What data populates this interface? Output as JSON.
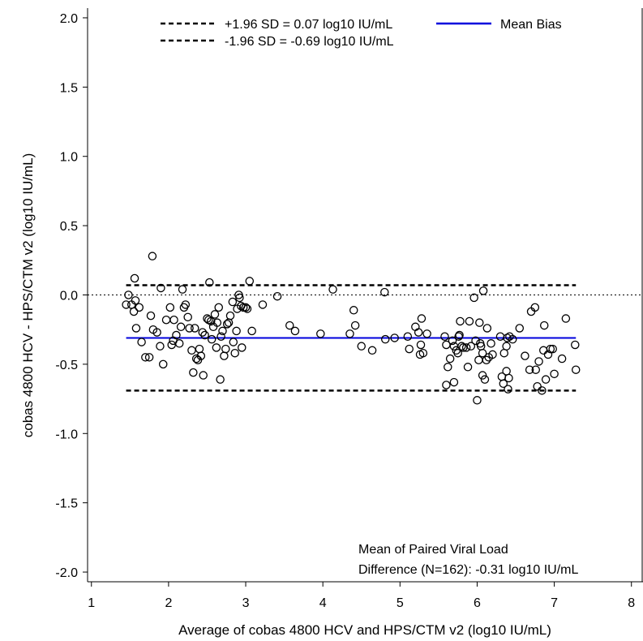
{
  "chart_data": {
    "type": "scatter",
    "xlabel": "Average of cobas 4800 HCV and HPS/CTM v2 (log10 IU/mL)",
    "ylabel": "cobas 4800 HCV - HPS/CTM v2 (log10 IU/mL)",
    "xlim": [
      0.95,
      8.15
    ],
    "ylim": [
      -2.07,
      2.07
    ],
    "xticks": [
      1,
      2,
      3,
      4,
      5,
      6,
      7,
      8
    ],
    "yticks": [
      2.0,
      1.5,
      1.0,
      0.5,
      0.0,
      -0.5,
      -1.0,
      -1.5,
      -2.0
    ],
    "ytick_labels": [
      "2.0",
      "1.5",
      "1.0",
      "0.5",
      "0.0",
      "-0.5",
      "-1.0",
      "-1.5",
      "-2.0"
    ],
    "grid": false,
    "legend_position": "top",
    "legend": {
      "upper_loa": "+1.96 SD = 0.07 log10 IU/mL",
      "lower_loa": "-1.96 SD = -0.69 log10 IU/mL",
      "mean": "Mean Bias"
    },
    "reference_lines": {
      "zero": 0.0,
      "mean_bias": -0.31,
      "upper_loa": 0.07,
      "lower_loa": -0.69,
      "x_range": [
        1.45,
        7.28
      ]
    },
    "colors": {
      "mean_line": "#0000dd",
      "points": "#000000",
      "loa": "#000000"
    },
    "annotation": {
      "line1": "Mean of Paired Viral Load",
      "line2": "Difference (N=162): -0.31 log10 IU/mL"
    },
    "points": [
      [
        1.45,
        -0.07
      ],
      [
        1.48,
        -0.0
      ],
      [
        1.52,
        -0.07
      ],
      [
        1.55,
        -0.12
      ],
      [
        1.56,
        0.12
      ],
      [
        1.57,
        -0.04
      ],
      [
        1.58,
        -0.24
      ],
      [
        1.62,
        -0.09
      ],
      [
        1.65,
        -0.34
      ],
      [
        1.7,
        -0.45
      ],
      [
        1.75,
        -0.45
      ],
      [
        1.77,
        -0.15
      ],
      [
        1.79,
        0.28
      ],
      [
        1.8,
        -0.25
      ],
      [
        1.85,
        -0.27
      ],
      [
        1.89,
        -0.37
      ],
      [
        1.9,
        0.05
      ],
      [
        1.93,
        -0.5
      ],
      [
        1.97,
        -0.18
      ],
      [
        2.02,
        -0.09
      ],
      [
        2.04,
        -0.36
      ],
      [
        2.06,
        -0.33
      ],
      [
        2.07,
        -0.18
      ],
      [
        2.1,
        -0.29
      ],
      [
        2.14,
        -0.35
      ],
      [
        2.16,
        -0.23
      ],
      [
        2.18,
        0.04
      ],
      [
        2.2,
        -0.09
      ],
      [
        2.22,
        -0.07
      ],
      [
        2.25,
        -0.16
      ],
      [
        2.27,
        -0.24
      ],
      [
        2.3,
        -0.4
      ],
      [
        2.32,
        -0.56
      ],
      [
        2.34,
        -0.24
      ],
      [
        2.36,
        -0.46
      ],
      [
        2.38,
        -0.47
      ],
      [
        2.4,
        -0.39
      ],
      [
        2.42,
        -0.44
      ],
      [
        2.44,
        -0.27
      ],
      [
        2.45,
        -0.58
      ],
      [
        2.47,
        -0.29
      ],
      [
        2.5,
        -0.17
      ],
      [
        2.52,
        -0.18
      ],
      [
        2.53,
        0.09
      ],
      [
        2.55,
        -0.19
      ],
      [
        2.56,
        -0.32
      ],
      [
        2.58,
        -0.23
      ],
      [
        2.6,
        -0.14
      ],
      [
        2.62,
        -0.38
      ],
      [
        2.63,
        -0.2
      ],
      [
        2.65,
        -0.09
      ],
      [
        2.67,
        -0.61
      ],
      [
        2.68,
        -0.3
      ],
      [
        2.7,
        -0.26
      ],
      [
        2.72,
        -0.44
      ],
      [
        2.74,
        -0.39
      ],
      [
        2.76,
        -0.21
      ],
      [
        2.78,
        -0.2
      ],
      [
        2.8,
        -0.15
      ],
      [
        2.83,
        -0.05
      ],
      [
        2.84,
        -0.34
      ],
      [
        2.86,
        -0.42
      ],
      [
        2.88,
        -0.26
      ],
      [
        2.89,
        -0.1
      ],
      [
        2.91,
        -0.0
      ],
      [
        2.92,
        -0.02
      ],
      [
        2.94,
        -0.08
      ],
      [
        2.95,
        -0.38
      ],
      [
        2.97,
        -0.09
      ],
      [
        3.0,
        -0.09
      ],
      [
        3.02,
        -0.1
      ],
      [
        3.05,
        0.1
      ],
      [
        3.08,
        -0.26
      ],
      [
        3.22,
        -0.07
      ],
      [
        3.41,
        -0.01
      ],
      [
        3.57,
        -0.22
      ],
      [
        3.64,
        -0.26
      ],
      [
        3.97,
        -0.28
      ],
      [
        4.13,
        0.04
      ],
      [
        4.35,
        -0.28
      ],
      [
        4.4,
        -0.11
      ],
      [
        4.42,
        -0.22
      ],
      [
        4.5,
        -0.37
      ],
      [
        4.64,
        -0.4
      ],
      [
        4.8,
        0.02
      ],
      [
        4.81,
        -0.32
      ],
      [
        4.93,
        -0.31
      ],
      [
        5.1,
        -0.3
      ],
      [
        5.12,
        -0.39
      ],
      [
        5.2,
        -0.23
      ],
      [
        5.24,
        -0.27
      ],
      [
        5.26,
        -0.43
      ],
      [
        5.27,
        -0.36
      ],
      [
        5.28,
        -0.17
      ],
      [
        5.3,
        -0.42
      ],
      [
        5.35,
        -0.28
      ],
      [
        5.58,
        -0.3
      ],
      [
        5.6,
        -0.65
      ],
      [
        5.6,
        -0.36
      ],
      [
        5.62,
        -0.52
      ],
      [
        5.65,
        -0.46
      ],
      [
        5.68,
        -0.33
      ],
      [
        5.7,
        -0.37
      ],
      [
        5.7,
        -0.63
      ],
      [
        5.73,
        -0.4
      ],
      [
        5.75,
        -0.42
      ],
      [
        5.76,
        -0.3
      ],
      [
        5.77,
        -0.29
      ],
      [
        5.78,
        -0.19
      ],
      [
        5.8,
        -0.37
      ],
      [
        5.82,
        -0.38
      ],
      [
        5.86,
        -0.38
      ],
      [
        5.88,
        -0.52
      ],
      [
        5.9,
        -0.19
      ],
      [
        5.92,
        -0.37
      ],
      [
        5.96,
        -0.02
      ],
      [
        5.98,
        -0.33
      ],
      [
        6.0,
        -0.76
      ],
      [
        6.02,
        -0.47
      ],
      [
        6.03,
        -0.2
      ],
      [
        6.04,
        -0.35
      ],
      [
        6.05,
        -0.37
      ],
      [
        6.07,
        -0.42
      ],
      [
        6.07,
        -0.58
      ],
      [
        6.08,
        0.03
      ],
      [
        6.1,
        -0.61
      ],
      [
        6.12,
        -0.47
      ],
      [
        6.13,
        -0.24
      ],
      [
        6.15,
        -0.45
      ],
      [
        6.18,
        -0.35
      ],
      [
        6.2,
        -0.43
      ],
      [
        6.3,
        -0.3
      ],
      [
        6.32,
        -0.59
      ],
      [
        6.34,
        -0.64
      ],
      [
        6.35,
        -0.42
      ],
      [
        6.38,
        -0.55
      ],
      [
        6.38,
        -0.37
      ],
      [
        6.39,
        -0.31
      ],
      [
        6.4,
        -0.68
      ],
      [
        6.41,
        -0.6
      ],
      [
        6.42,
        -0.3
      ],
      [
        6.46,
        -0.32
      ],
      [
        6.55,
        -0.24
      ],
      [
        6.62,
        -0.44
      ],
      [
        6.68,
        -0.54
      ],
      [
        6.7,
        -0.12
      ],
      [
        6.75,
        -0.09
      ],
      [
        6.76,
        -0.54
      ],
      [
        6.78,
        -0.66
      ],
      [
        6.8,
        -0.48
      ],
      [
        6.84,
        -0.69
      ],
      [
        6.86,
        -0.4
      ],
      [
        6.87,
        -0.22
      ],
      [
        6.89,
        -0.61
      ],
      [
        6.92,
        -0.43
      ],
      [
        6.95,
        -0.39
      ],
      [
        6.98,
        -0.39
      ],
      [
        7.0,
        -0.57
      ],
      [
        7.1,
        -0.46
      ],
      [
        7.15,
        -0.17
      ],
      [
        7.27,
        -0.36
      ],
      [
        7.28,
        -0.54
      ]
    ]
  }
}
